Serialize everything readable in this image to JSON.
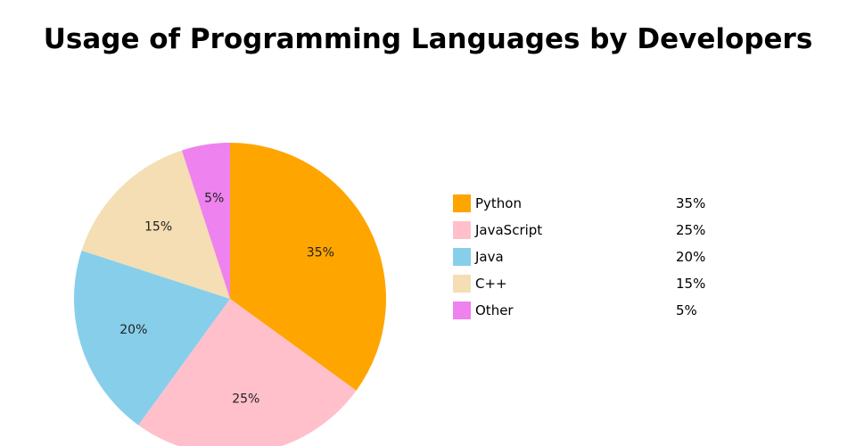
{
  "chart_data": {
    "type": "pie",
    "title": "Usage of Programming Languages by Developers",
    "categories": [
      "Python",
      "JavaScript",
      "Java",
      "C++",
      "Other"
    ],
    "values": [
      35,
      25,
      20,
      15,
      5
    ],
    "labels": [
      "35%",
      "25%",
      "20%",
      "15%",
      "5%"
    ],
    "colors": [
      "#ffa500",
      "#ffc0cb",
      "#87ceeb",
      "#f5deb3",
      "#ee82ee"
    ],
    "legend": [
      {
        "label": "Python",
        "value": "35%"
      },
      {
        "label": "JavaScript",
        "value": "25%"
      },
      {
        "label": "Java",
        "value": "20%"
      },
      {
        "label": "C++",
        "value": "15%"
      },
      {
        "label": "Other",
        "value": "5%"
      }
    ],
    "legend_position": "right",
    "start_angle": "top",
    "direction": "clockwise"
  }
}
